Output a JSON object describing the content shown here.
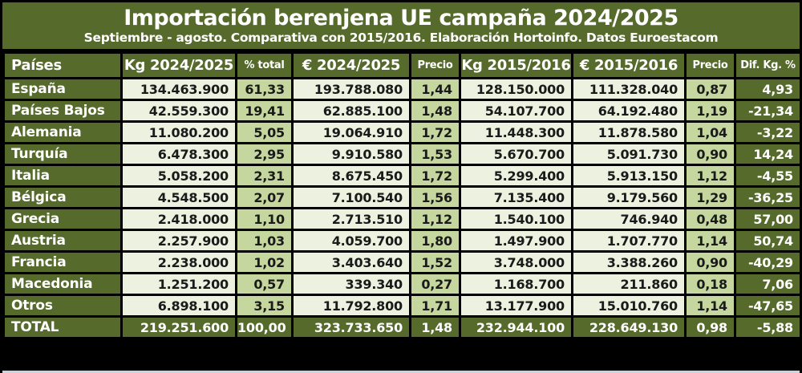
{
  "title": "Importación berenjena UE campaña 2024/2025",
  "subtitle": "Septiembre - agosto. Comparativa con 2015/2016. Elaboración Hortoinfo. Datos Euroestacom",
  "colors": {
    "dark_olive": "#566a2b",
    "light_green": "#c5d79f",
    "cream": "#edf1e0",
    "border": "#000000",
    "title_text": "#ffffff",
    "value_text": "#1a1a1a",
    "bottom_edge": "#ccd3da"
  },
  "chart_data": {
    "type": "table",
    "title": "Importación berenjena UE campaña 2024/2025",
    "subtitle": "Septiembre - agosto. Comparativa con 2015/2016. Elaboración Hortoinfo. Datos Euroestacom",
    "columns": [
      "Países",
      "Kg 2024/2025",
      "% total",
      "€ 2024/2025",
      "Precio",
      "Kg 2015/2016",
      "€ 2015/2016",
      "Precio",
      "Dif. Kg. %"
    ],
    "rows": [
      [
        "España",
        "134.463.900",
        "61,33",
        "193.788.080",
        "1,44",
        "128.150.000",
        "111.328.040",
        "0,87",
        "4,93"
      ],
      [
        "Países Bajos",
        "42.559.300",
        "19,41",
        "62.885.100",
        "1,48",
        "54.107.700",
        "64.192.480",
        "1,19",
        "-21,34"
      ],
      [
        "Alemania",
        "11.080.200",
        "5,05",
        "19.064.910",
        "1,72",
        "11.448.300",
        "11.878.580",
        "1,04",
        "-3,22"
      ],
      [
        "Turquía",
        "6.478.300",
        "2,95",
        "9.910.580",
        "1,53",
        "5.670.700",
        "5.091.730",
        "0,90",
        "14,24"
      ],
      [
        "Italia",
        "5.058.200",
        "2,31",
        "8.675.450",
        "1,72",
        "5.299.400",
        "5.913.150",
        "1,12",
        "-4,55"
      ],
      [
        "Bélgica",
        "4.548.500",
        "2,07",
        "7.100.540",
        "1,56",
        "7.135.400",
        "9.179.560",
        "1,29",
        "-36,25"
      ],
      [
        "Grecia",
        "2.418.000",
        "1,10",
        "2.713.510",
        "1,12",
        "1.540.100",
        "746.940",
        "0,48",
        "57,00"
      ],
      [
        "Austria",
        "2.257.900",
        "1,03",
        "4.059.700",
        "1,80",
        "1.497.900",
        "1.707.770",
        "1,14",
        "50,74"
      ],
      [
        "Francia",
        "2.238.000",
        "1,02",
        "3.403.640",
        "1,52",
        "3.748.000",
        "3.388.260",
        "0,90",
        "-40,29"
      ],
      [
        "Macedonia",
        "1.251.200",
        "0,57",
        "339.340",
        "0,27",
        "1.168.700",
        "211.860",
        "0,18",
        "7,06"
      ],
      [
        "Otros",
        "6.898.100",
        "3,15",
        "11.792.800",
        "1,71",
        "13.177.900",
        "15.010.760",
        "1,14",
        "-47,65"
      ]
    ],
    "total": [
      "TOTAL",
      "219.251.600",
      "100,00",
      "323.733.650",
      "1,48",
      "232.944.100",
      "228.649.130",
      "0,98",
      "-5,88"
    ]
  }
}
